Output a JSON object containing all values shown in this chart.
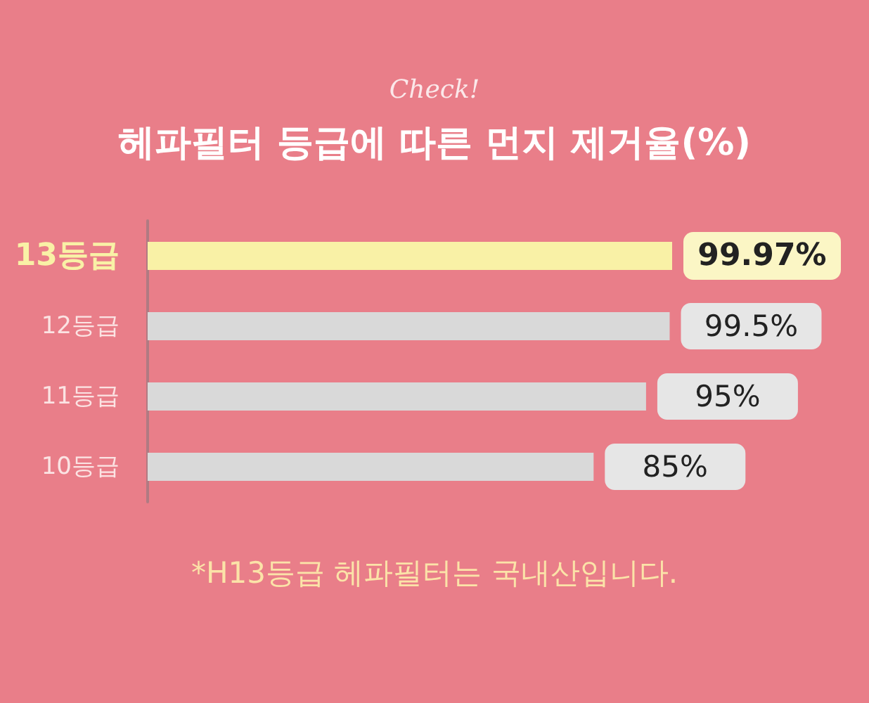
{
  "chart_data": {
    "type": "bar",
    "orientation": "horizontal",
    "title": "헤파필터 등급에 따른 먼지 제거율(%)",
    "subtitle": "Check!",
    "categories": [
      "13등급",
      "12등급",
      "11등급",
      "10등급"
    ],
    "values": [
      99.97,
      99.5,
      95,
      85
    ],
    "value_labels": [
      "99.97%",
      "99.5%",
      "95%",
      "85%"
    ],
    "colors": [
      "#f9f1a6",
      "#d9d9d9",
      "#d9d9d9",
      "#d9d9d9"
    ],
    "tick_labels": "y",
    "grid": false,
    "annotations": [
      "*H13등급 헤파필터는 국내산입니다."
    ]
  }
}
